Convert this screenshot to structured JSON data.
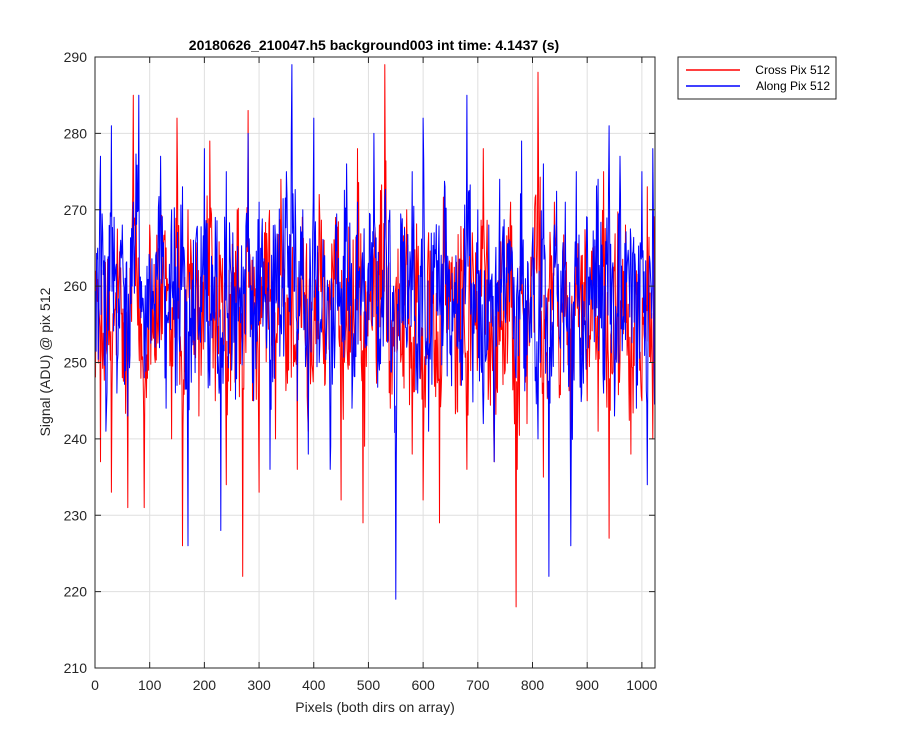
{
  "chart_data": {
    "type": "line",
    "title": "20180626_210047.h5  background003   int time: 4.1437 (s)",
    "xlabel": "Pixels (both dirs on array)",
    "ylabel": "Signal (ADU) @ pix 512",
    "xlim": [
      0,
      1024
    ],
    "ylim": [
      210,
      290
    ],
    "xticks": [
      0,
      100,
      200,
      300,
      400,
      500,
      600,
      700,
      800,
      900,
      1000
    ],
    "yticks": [
      210,
      220,
      230,
      240,
      250,
      260,
      270,
      280,
      290
    ],
    "grid": true,
    "legend_position": "outside top-right",
    "series": [
      {
        "name": "Cross Pix 512",
        "color": "#ff0000",
        "x": [
          0,
          10,
          20,
          30,
          40,
          50,
          60,
          70,
          80,
          90,
          100,
          110,
          120,
          130,
          140,
          150,
          160,
          170,
          180,
          190,
          200,
          210,
          220,
          230,
          240,
          250,
          260,
          270,
          280,
          290,
          300,
          310,
          320,
          330,
          340,
          350,
          360,
          370,
          380,
          390,
          400,
          410,
          420,
          430,
          440,
          450,
          460,
          470,
          480,
          490,
          500,
          510,
          520,
          530,
          540,
          550,
          560,
          570,
          580,
          590,
          600,
          610,
          620,
          630,
          640,
          650,
          660,
          670,
          680,
          690,
          700,
          710,
          720,
          730,
          740,
          750,
          760,
          770,
          780,
          790,
          800,
          810,
          820,
          830,
          840,
          850,
          860,
          870,
          880,
          890,
          900,
          910,
          920,
          930,
          940,
          950,
          960,
          970,
          980,
          990,
          1000,
          1010,
          1020
        ],
        "values": [
          270,
          237,
          258,
          233,
          262,
          248,
          231,
          285,
          253,
          231,
          268,
          250,
          259,
          265,
          240,
          282,
          226,
          270,
          255,
          243,
          265,
          279,
          245,
          262,
          234,
          251,
          270,
          222,
          283,
          245,
          233,
          267,
          258,
          240,
          274,
          249,
          261,
          236,
          266,
          241,
          253,
          272,
          247,
          259,
          269,
          232,
          261,
          249,
          278,
          229,
          262,
          256,
          268,
          289,
          244,
          260,
          251,
          270,
          238,
          262,
          232,
          267,
          250,
          229,
          273,
          258,
          244,
          262,
          236,
          267,
          253,
          278,
          248,
          237,
          263,
          249,
          271,
          218,
          259,
          242,
          266,
          288,
          235,
          258,
          271,
          247,
          262,
          239,
          268,
          251,
          245,
          265,
          241,
          275,
          227,
          262,
          250,
          268,
          238,
          262,
          245,
          273,
          240
        ]
      },
      {
        "name": "Along Pix 512",
        "color": "#0000ff",
        "x": [
          0,
          10,
          20,
          30,
          40,
          50,
          60,
          70,
          80,
          90,
          100,
          110,
          120,
          130,
          140,
          150,
          160,
          170,
          180,
          190,
          200,
          210,
          220,
          230,
          240,
          250,
          260,
          270,
          280,
          290,
          300,
          310,
          320,
          330,
          340,
          350,
          360,
          370,
          380,
          390,
          400,
          410,
          420,
          430,
          440,
          450,
          460,
          470,
          480,
          490,
          500,
          510,
          520,
          530,
          540,
          550,
          560,
          570,
          580,
          590,
          600,
          610,
          620,
          630,
          640,
          650,
          660,
          670,
          680,
          690,
          700,
          710,
          720,
          730,
          740,
          750,
          760,
          770,
          780,
          790,
          800,
          810,
          820,
          830,
          840,
          850,
          860,
          870,
          880,
          890,
          900,
          910,
          920,
          930,
          940,
          950,
          960,
          970,
          980,
          990,
          1000,
          1010,
          1020
        ],
        "values": [
          255,
          277,
          241,
          281,
          246,
          268,
          243,
          271,
          285,
          248,
          263,
          252,
          277,
          244,
          270,
          247,
          273,
          226,
          266,
          253,
          278,
          247,
          269,
          228,
          275,
          249,
          263,
          253,
          280,
          245,
          271,
          259,
          236,
          266,
          256,
          275,
          289,
          245,
          270,
          238,
          282,
          250,
          264,
          236,
          268,
          255,
          276,
          244,
          271,
          258,
          263,
          280,
          249,
          271,
          261,
          219,
          268,
          252,
          275,
          246,
          282,
          241,
          267,
          258,
          273,
          251,
          264,
          247,
          285,
          253,
          270,
          242,
          268,
          237,
          274,
          256,
          262,
          248,
          279,
          251,
          266,
          240,
          276,
          222,
          268,
          253,
          271,
          226,
          275,
          246,
          269,
          257,
          274,
          246,
          281,
          243,
          277,
          253,
          266,
          244,
          275,
          234,
          278
        ]
      }
    ]
  }
}
